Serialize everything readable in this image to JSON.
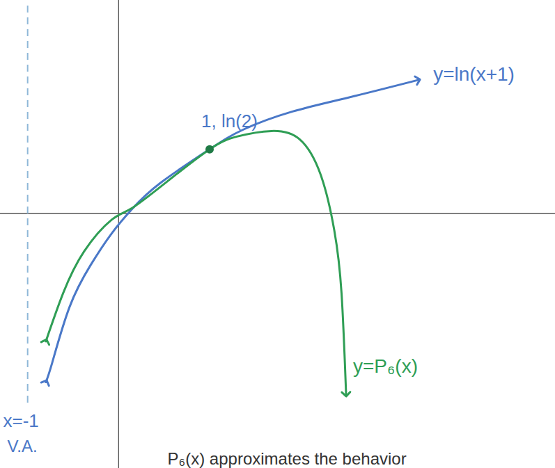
{
  "chart_data": {
    "type": "line",
    "tick_labels": false,
    "xlim": [
      -1.3,
      4.8
    ],
    "ylim": [
      -2.75,
      2.3
    ],
    "series": [
      {
        "name": "y=ln(x+1)",
        "color": "#4a78c8",
        "x": [
          -0.8,
          -0.73,
          -0.54,
          -0.31,
          -0.08,
          0.15,
          0.46,
          1,
          1.38,
          1.91,
          2.52,
          3.29
        ],
        "values": [
          -1.82,
          -1.61,
          -1.01,
          -0.56,
          -0.22,
          0.05,
          0.33,
          0.693,
          0.91,
          1.1,
          1.25,
          1.44
        ]
      },
      {
        "name": "y=P₆(x)",
        "color": "#2f9e55",
        "x": [
          -0.8,
          -0.61,
          -0.38,
          -0.08,
          0.15,
          0.54,
          1,
          1.3,
          1.68,
          1.99,
          2.22,
          2.37,
          2.45,
          2.5
        ],
        "values": [
          -1.38,
          -0.86,
          -0.41,
          -0.07,
          0.06,
          0.35,
          0.693,
          0.83,
          0.89,
          0.8,
          0.42,
          -0.18,
          -0.86,
          -1.95
        ]
      }
    ],
    "asymptote": {
      "x": -1,
      "labels": [
        "x=-1",
        "V.A."
      ],
      "color": "#8fb8d8",
      "line_style": "dashed"
    },
    "point": {
      "x": 1,
      "y": 0.693,
      "label": "1, ln(2)",
      "color": "#1f7a45"
    },
    "annotations": [
      "P₆(x) approximates the behavior"
    ]
  }
}
